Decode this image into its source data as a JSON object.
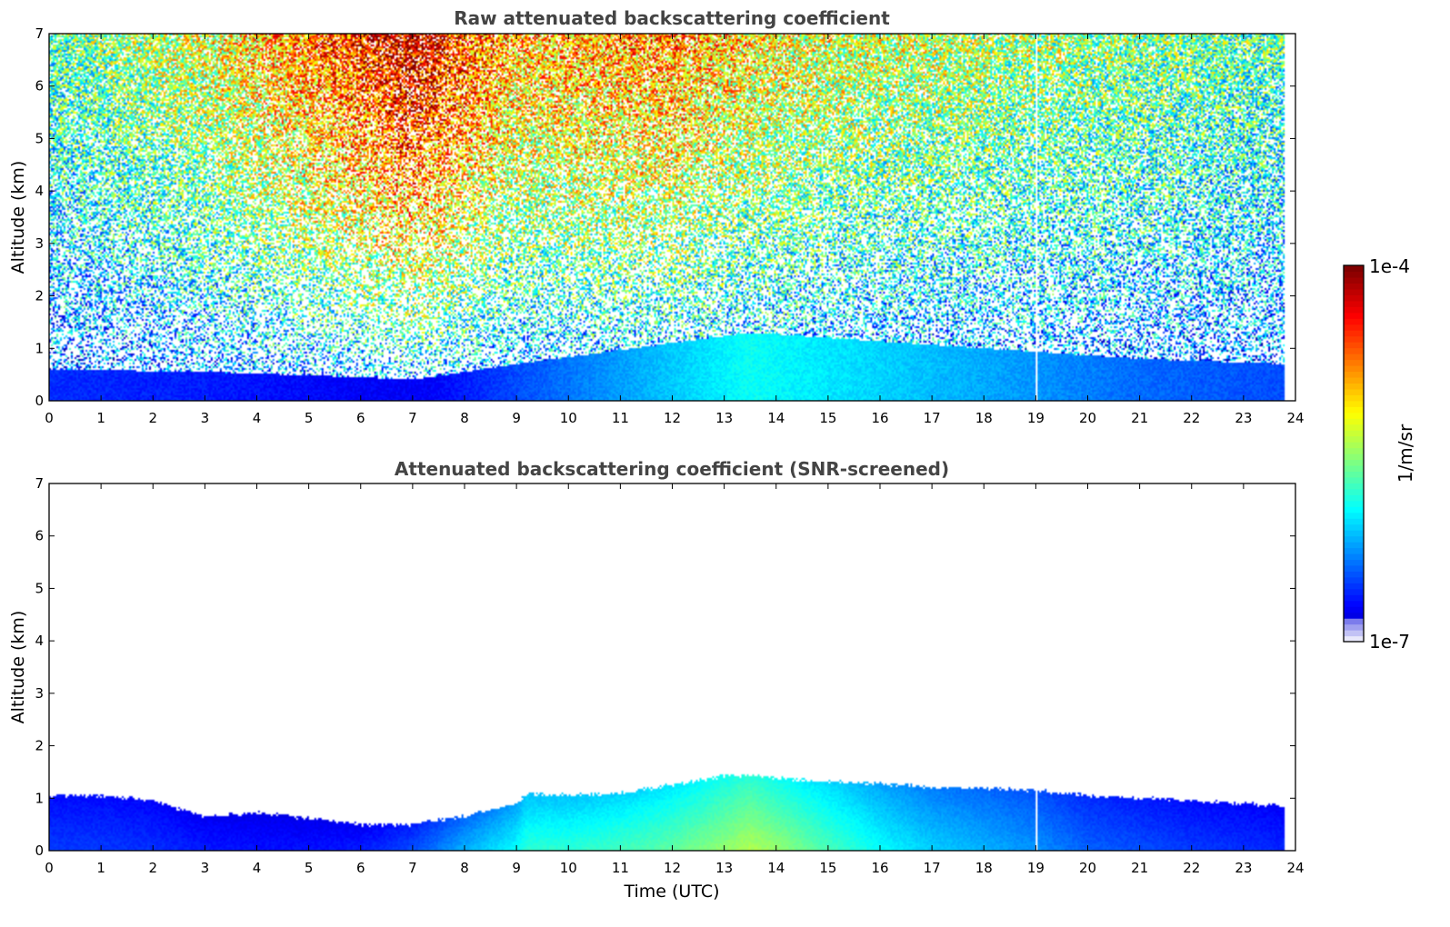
{
  "chart_data": [
    {
      "type": "heatmap",
      "title": "Raw attenuated backscattering coefficient",
      "xlabel": "",
      "ylabel": "Altitude (km)",
      "xlim": [
        0,
        24
      ],
      "ylim": [
        0,
        7
      ],
      "x_ticks": [
        "0",
        "1",
        "2",
        "3",
        "4",
        "5",
        "6",
        "7",
        "8",
        "9",
        "10",
        "11",
        "12",
        "13",
        "14",
        "15",
        "16",
        "17",
        "18",
        "19",
        "20",
        "21",
        "22",
        "23",
        "24"
      ],
      "y_ticks": [
        "0",
        "1",
        "2",
        "3",
        "4",
        "5",
        "6",
        "7"
      ],
      "data_end_time": 23.8,
      "gap_time": 19.0,
      "field_description_hours": [
        0,
        3,
        6,
        7,
        9,
        12,
        13.5,
        15,
        18,
        21,
        23.8
      ],
      "near_surface_layer_top_km": [
        0.6,
        0.55,
        0.45,
        0.4,
        0.7,
        1.1,
        1.3,
        1.2,
        1.0,
        0.8,
        0.7
      ],
      "upper_signal_level": [
        0.45,
        0.6,
        0.85,
        0.95,
        0.7,
        0.75,
        0.65,
        0.6,
        0.55,
        0.5,
        0.45
      ]
    },
    {
      "type": "heatmap",
      "title": "Attenuated backscattering coefficient (SNR-screened)",
      "xlabel": "Time (UTC)",
      "ylabel": "Altitude (km)",
      "xlim": [
        0,
        24
      ],
      "ylim": [
        0,
        7
      ],
      "x_ticks": [
        "0",
        "1",
        "2",
        "3",
        "4",
        "5",
        "6",
        "7",
        "8",
        "9",
        "10",
        "11",
        "12",
        "13",
        "14",
        "15",
        "16",
        "17",
        "18",
        "19",
        "20",
        "21",
        "22",
        "23",
        "24"
      ],
      "y_ticks": [
        "0",
        "1",
        "2",
        "3",
        "4",
        "5",
        "6",
        "7"
      ],
      "data_end_time": 23.8,
      "gap_time": 19.0,
      "layer_top_time": [
        0,
        1,
        2,
        3,
        4,
        5,
        6,
        7,
        8,
        9,
        9.2,
        10,
        11,
        12,
        13,
        13.5,
        14,
        15,
        16,
        17,
        18,
        19,
        20,
        21,
        22,
        23,
        23.8
      ],
      "layer_top_km": [
        1.05,
        1.05,
        0.95,
        0.65,
        0.72,
        0.62,
        0.5,
        0.5,
        0.65,
        0.9,
        1.08,
        1.05,
        1.1,
        1.25,
        1.42,
        1.45,
        1.38,
        1.32,
        1.28,
        1.2,
        1.2,
        1.15,
        1.05,
        1.0,
        0.95,
        0.9,
        0.85
      ],
      "layer_intensity": [
        0.18,
        0.18,
        0.17,
        0.15,
        0.14,
        0.14,
        0.15,
        0.2,
        0.3,
        0.38,
        0.42,
        0.42,
        0.44,
        0.47,
        0.52,
        0.55,
        0.52,
        0.45,
        0.38,
        0.33,
        0.3,
        0.27,
        0.22,
        0.2,
        0.18,
        0.17,
        0.16
      ]
    }
  ],
  "colorbar": {
    "max_label": "1e-4",
    "min_label": "1e-7",
    "unit_label": "1/m/sr",
    "colormap": "jet",
    "lowest_colors": [
      "#e8e8fb",
      "#c2c2f5",
      "#a0a0f0",
      "#7c7cec"
    ]
  }
}
